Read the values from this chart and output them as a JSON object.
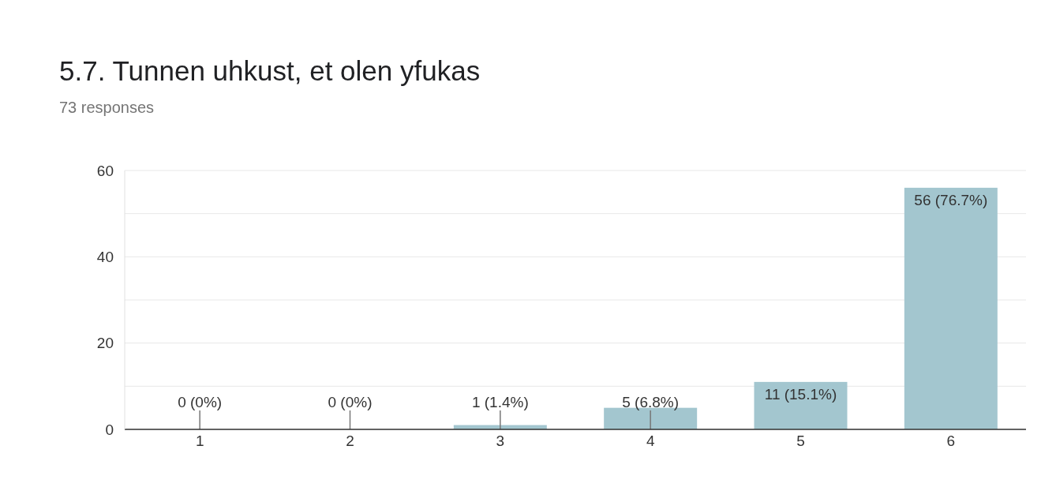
{
  "chart_data": {
    "type": "bar",
    "title": "5.7. Tunnen uhkust, et olen yfukas",
    "subtitle": "73 responses",
    "categories": [
      "1",
      "2",
      "3",
      "4",
      "5",
      "6"
    ],
    "values": [
      0,
      0,
      1,
      5,
      11,
      56
    ],
    "color": "#a3c6cf",
    "value_labels": [
      "0 (0%)",
      "0 (0%)",
      "1 (1.4%)",
      "5 (6.8%)",
      "11 (15.1%)",
      "56 (76.7%)"
    ],
    "ylim": [
      0,
      60
    ],
    "yticks": [
      0,
      {
        "value": 10,
        "label": null
      },
      20,
      {
        "value": 30,
        "label": null
      },
      40,
      {
        "value": 50,
        "label": null
      },
      60
    ],
    "grid": "y",
    "legend": false
  }
}
